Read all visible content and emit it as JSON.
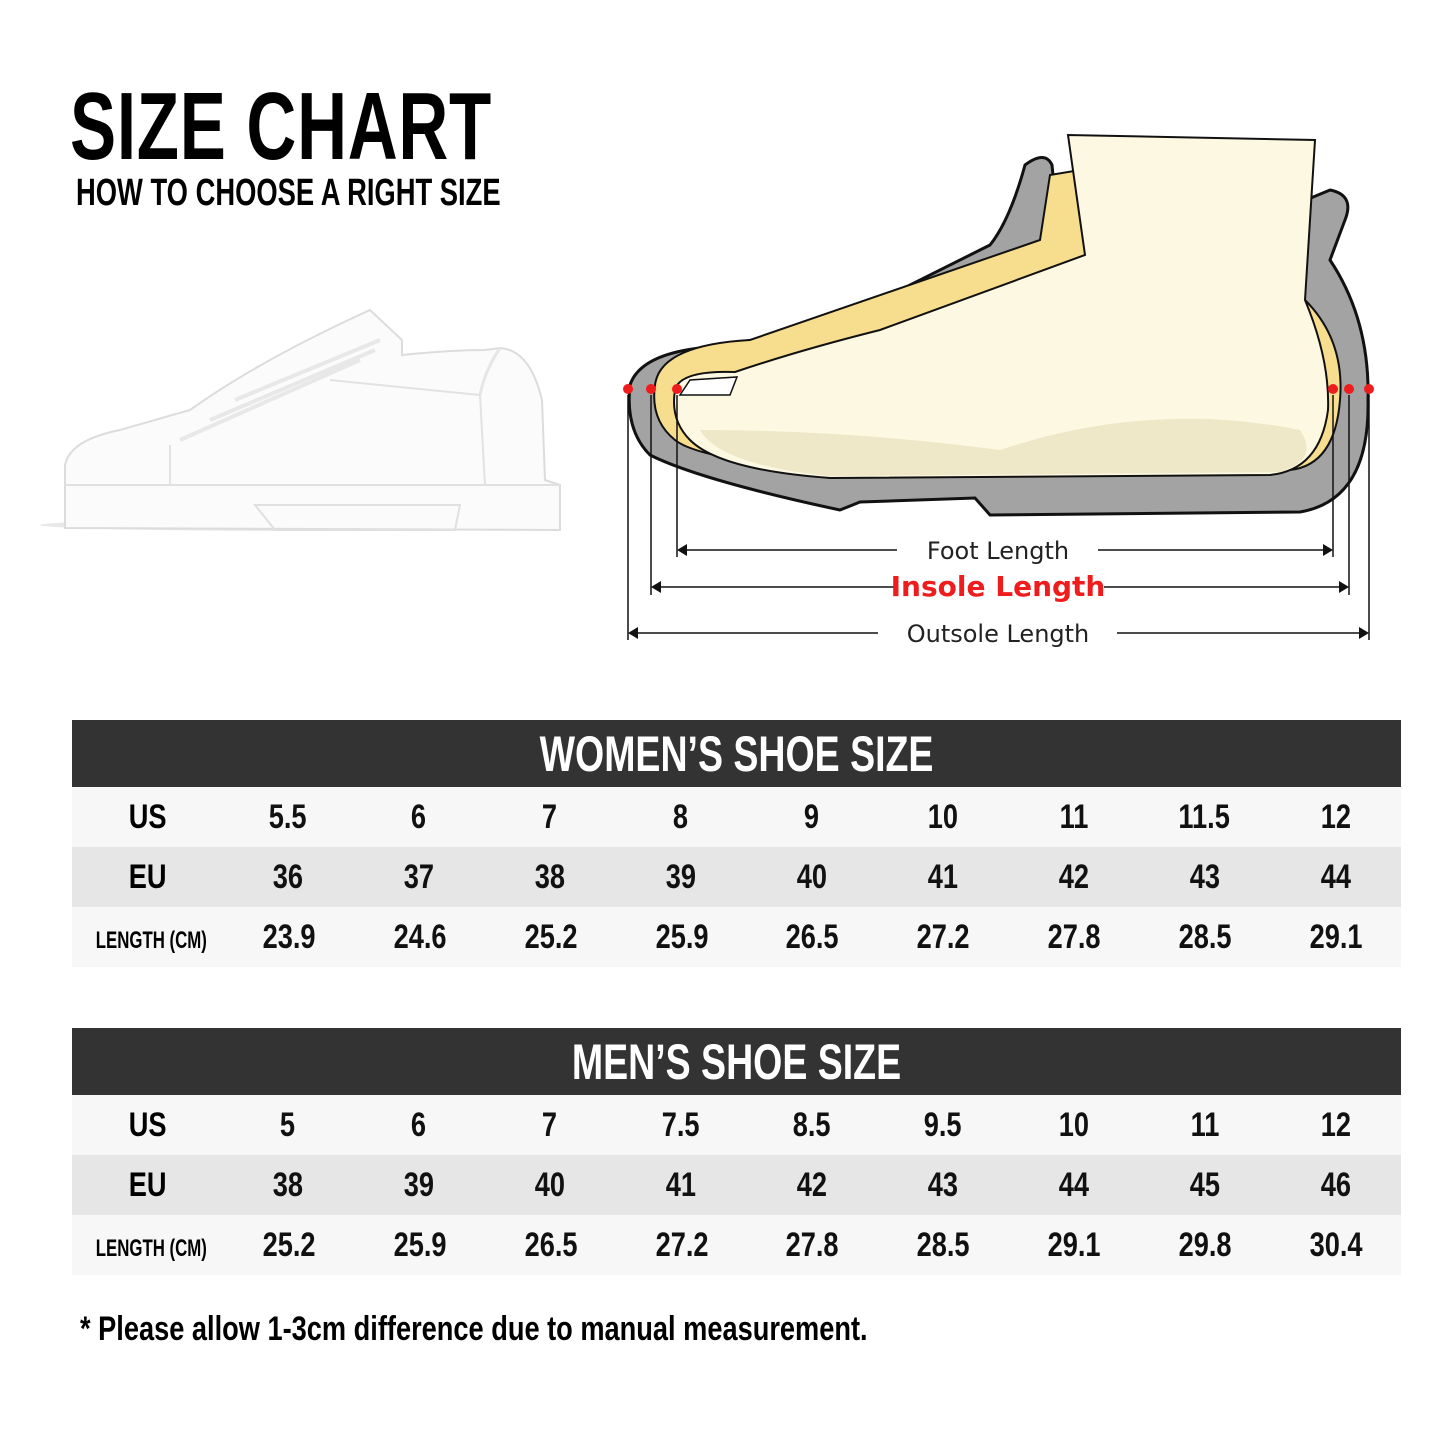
{
  "header": {
    "title": "SIZE CHART",
    "subtitle": "HOW TO CHOOSE A RIGHT SIZE"
  },
  "diagram": {
    "foot_length": "Foot Length",
    "insole_length": "Insole Length",
    "outsole_length": "Outsole Length",
    "colors": {
      "insole_label": "#ee1c1c",
      "sole": "#a3a3a3",
      "insole": "#f7de8f",
      "foot": "#fdf8e2",
      "marker": "#ee1c1c"
    }
  },
  "women": {
    "title": "WOMEN’S SHOE SIZE",
    "rows": [
      {
        "label": "US",
        "values": [
          "5.5",
          "6",
          "7",
          "8",
          "9",
          "10",
          "11",
          "11.5",
          "12"
        ]
      },
      {
        "label": "EU",
        "values": [
          "36",
          "37",
          "38",
          "39",
          "40",
          "41",
          "42",
          "43",
          "44"
        ]
      },
      {
        "label": "LENGTH (CM)",
        "values": [
          "23.9",
          "24.6",
          "25.2",
          "25.9",
          "26.5",
          "27.2",
          "27.8",
          "28.5",
          "29.1"
        ]
      }
    ]
  },
  "men": {
    "title": "MEN’S SHOE SIZE",
    "rows": [
      {
        "label": "US",
        "values": [
          "5",
          "6",
          "7",
          "7.5",
          "8.5",
          "9.5",
          "10",
          "11",
          "12"
        ]
      },
      {
        "label": "EU",
        "values": [
          "38",
          "39",
          "40",
          "41",
          "42",
          "43",
          "44",
          "45",
          "46"
        ]
      },
      {
        "label": "LENGTH (CM)",
        "values": [
          "25.2",
          "25.9",
          "26.5",
          "27.2",
          "27.8",
          "28.5",
          "29.1",
          "29.8",
          "30.4"
        ]
      }
    ]
  },
  "footnote": "* Please allow 1-3cm difference due to manual measurement."
}
